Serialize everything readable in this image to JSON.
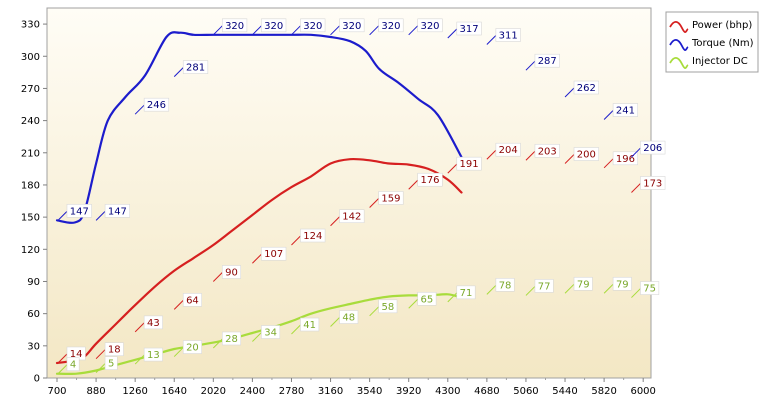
{
  "chart_data": {
    "type": "line",
    "title": "",
    "xlabel": "",
    "ylabel": "",
    "x_tick_labels": [
      "700",
      "880",
      "1260",
      "1640",
      "2020",
      "2400",
      "2780",
      "3160",
      "3540",
      "3920",
      "4300",
      "4680",
      "5060",
      "5440",
      "5820",
      "6000"
    ],
    "y_ticks": [
      0,
      30,
      60,
      90,
      120,
      150,
      180,
      210,
      240,
      270,
      300,
      330
    ],
    "ylim": [
      0,
      345
    ],
    "grid": false,
    "legend_position": "top-right",
    "series": [
      {
        "name": "Power (bhp)",
        "color": "#d62020",
        "curve": [
          [
            0,
            14
          ],
          [
            0.8,
            16
          ],
          [
            1.4,
            20
          ],
          [
            2.0,
            32
          ],
          [
            3.0,
            50
          ],
          [
            4.0,
            68
          ],
          [
            5.0,
            85
          ],
          [
            6.0,
            100
          ],
          [
            7.0,
            112
          ],
          [
            8.0,
            124
          ],
          [
            9.0,
            138
          ],
          [
            10.0,
            152
          ],
          [
            11.0,
            166
          ],
          [
            12.0,
            178
          ],
          [
            13.0,
            188
          ],
          [
            14.0,
            200
          ],
          [
            15.0,
            204
          ],
          [
            16.0,
            203
          ],
          [
            17.0,
            200
          ],
          [
            18.0,
            199
          ],
          [
            19.0,
            195
          ],
          [
            20.0,
            185
          ],
          [
            20.7,
            173
          ]
        ],
        "labels": [
          [
            0,
            14
          ],
          [
            1,
            18
          ],
          [
            2,
            43
          ],
          [
            3,
            64
          ],
          [
            4,
            90
          ],
          [
            5,
            107
          ],
          [
            6,
            124
          ],
          [
            7,
            142
          ],
          [
            8,
            159
          ],
          [
            9,
            176
          ],
          [
            10,
            191
          ],
          [
            11,
            204
          ],
          [
            12,
            203
          ],
          [
            13,
            200
          ],
          [
            14,
            196
          ],
          [
            15,
            173
          ]
        ]
      },
      {
        "name": "Torque (Nm)",
        "color": "#1c1ccc",
        "curve": [
          [
            0,
            147
          ],
          [
            0.9,
            145
          ],
          [
            1.4,
            155
          ],
          [
            2.0,
            200
          ],
          [
            2.6,
            240
          ],
          [
            3.5,
            262
          ],
          [
            4.5,
            282
          ],
          [
            5.6,
            318
          ],
          [
            6.3,
            322
          ],
          [
            7.0,
            320
          ],
          [
            8.0,
            320
          ],
          [
            9.0,
            320
          ],
          [
            10.0,
            320
          ],
          [
            11.0,
            320
          ],
          [
            12.0,
            320
          ],
          [
            13.0,
            320
          ],
          [
            14.0,
            318
          ],
          [
            15.0,
            314
          ],
          [
            15.8,
            305
          ],
          [
            16.5,
            288
          ],
          [
            17.5,
            275
          ],
          [
            18.5,
            260
          ],
          [
            19.5,
            245
          ],
          [
            20.7,
            206
          ]
        ],
        "labels": [
          [
            0,
            147
          ],
          [
            1,
            147
          ],
          [
            2,
            246
          ],
          [
            3,
            281
          ],
          [
            4,
            320
          ],
          [
            5,
            320
          ],
          [
            6,
            320
          ],
          [
            7,
            320
          ],
          [
            8,
            320
          ],
          [
            9,
            320
          ],
          [
            10,
            317
          ],
          [
            11,
            311
          ],
          [
            12,
            287
          ],
          [
            13,
            262
          ],
          [
            14,
            241
          ],
          [
            15,
            206
          ]
        ]
      },
      {
        "name": "Injector DC",
        "color": "#a8dc3c",
        "curve": [
          [
            0,
            4
          ],
          [
            1.0,
            4
          ],
          [
            2.0,
            7
          ],
          [
            3.0,
            12
          ],
          [
            4.0,
            17
          ],
          [
            5.0,
            22
          ],
          [
            6.0,
            27
          ],
          [
            7.0,
            30
          ],
          [
            8.0,
            33
          ],
          [
            9.0,
            37
          ],
          [
            10.0,
            42
          ],
          [
            11.0,
            47
          ],
          [
            12.0,
            53
          ],
          [
            13.0,
            60
          ],
          [
            14.0,
            65
          ],
          [
            15.0,
            69
          ],
          [
            16.0,
            73
          ],
          [
            17.0,
            76
          ],
          [
            18.0,
            77
          ],
          [
            19.0,
            77
          ],
          [
            20.0,
            78
          ],
          [
            20.7,
            75
          ]
        ],
        "labels": [
          [
            0,
            4
          ],
          [
            1,
            5
          ],
          [
            2,
            13
          ],
          [
            3,
            20
          ],
          [
            4,
            28
          ],
          [
            5,
            34
          ],
          [
            6,
            41
          ],
          [
            7,
            48
          ],
          [
            8,
            58
          ],
          [
            9,
            65
          ],
          [
            10,
            71
          ],
          [
            11,
            78
          ],
          [
            12,
            77
          ],
          [
            13,
            79
          ],
          [
            14,
            79
          ],
          [
            15,
            75
          ]
        ]
      }
    ]
  }
}
